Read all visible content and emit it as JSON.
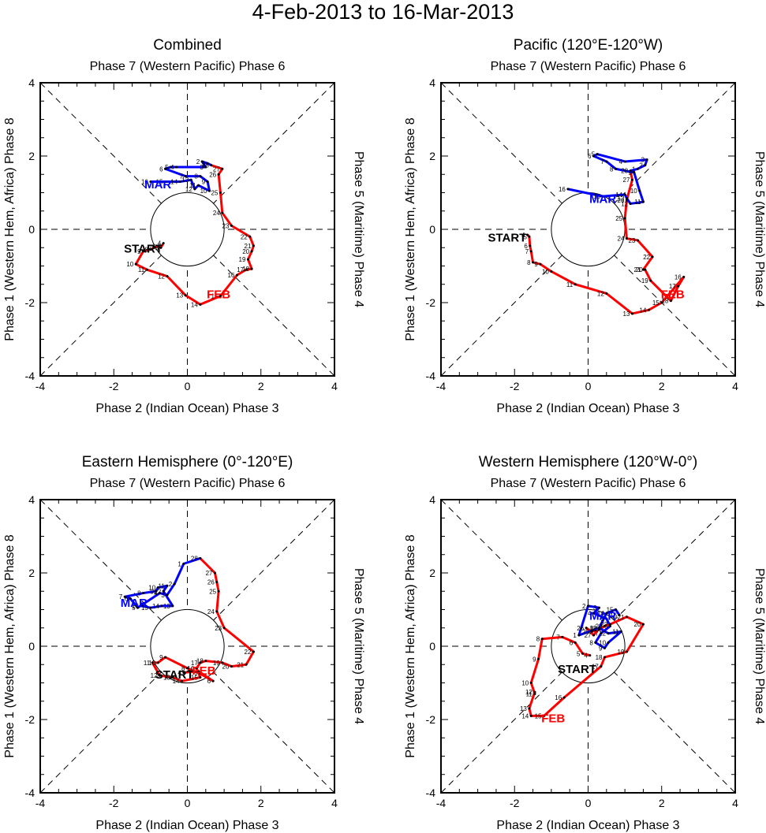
{
  "page": {
    "title": "4-Feb-2013 to 16-Mar-2013"
  },
  "axes": {
    "top_label": "Phase 7 (Western Pacific) Phase 6",
    "bottom_label": "Phase 2 (Indian Ocean) Phase 3",
    "left_label": "Phase 1 (Western Hem, Africa) Phase 8",
    "right_label": "Phase 5 (Maritime) Phase 4",
    "x_ticks": [
      "-4",
      "-2",
      "0",
      "2",
      "4"
    ],
    "y_ticks": [
      "4",
      "2",
      "0",
      "-2",
      "-4"
    ]
  },
  "colors": {
    "feb": "#ff0000",
    "mar": "#0000ff",
    "start": "#000000"
  },
  "labels": {
    "start": "START",
    "feb": "FEB",
    "mar": "MAR"
  },
  "chart_data": [
    {
      "type": "line",
      "title": "Combined",
      "xlim": [
        -4,
        4
      ],
      "ylim": [
        -4,
        4
      ],
      "start_label": [
        -1.2,
        -0.5
      ],
      "feb_label": [
        0.85,
        -1.75
      ],
      "mar_label": [
        -0.8,
        1.25
      ],
      "feb": [
        {
          "day": "4",
          "x": -0.65,
          "y": -0.38
        },
        {
          "day": "5",
          "x": -0.72,
          "y": -0.5
        },
        {
          "day": "6",
          "x": -0.8,
          "y": -0.46
        },
        {
          "day": "7",
          "x": -0.9,
          "y": -0.5
        },
        {
          "day": "8",
          "x": -1.0,
          "y": -0.55
        },
        {
          "day": "9",
          "x": -1.2,
          "y": -0.6
        },
        {
          "day": "10",
          "x": -1.4,
          "y": -0.95
        },
        {
          "day": "11",
          "x": -1.1,
          "y": -1.1
        },
        {
          "day": "12",
          "x": -0.55,
          "y": -1.28
        },
        {
          "day": "13",
          "x": -0.05,
          "y": -1.8
        },
        {
          "day": "14",
          "x": 0.35,
          "y": -2.05
        },
        {
          "day": "15",
          "x": 0.9,
          "y": -1.82
        },
        {
          "day": "16",
          "x": 1.35,
          "y": -1.25
        },
        {
          "day": "17",
          "x": 1.6,
          "y": -1.1
        },
        {
          "day": "18",
          "x": 1.75,
          "y": -1.08
        },
        {
          "day": "19",
          "x": 1.65,
          "y": -0.82
        },
        {
          "day": "20",
          "x": 1.75,
          "y": -0.6
        },
        {
          "day": "21",
          "x": 1.8,
          "y": -0.45
        },
        {
          "day": "22",
          "x": 1.7,
          "y": -0.2
        },
        {
          "day": "23",
          "x": 1.2,
          "y": 0.1
        },
        {
          "day": "24",
          "x": 0.95,
          "y": 0.45
        },
        {
          "day": "25",
          "x": 0.9,
          "y": 1.0
        },
        {
          "day": "26",
          "x": 0.85,
          "y": 1.5
        },
        {
          "day": "27",
          "x": 0.95,
          "y": 1.65
        },
        {
          "day": "28",
          "x": 0.65,
          "y": 1.75
        }
      ],
      "mar": [
        {
          "day": "1",
          "x": 0.55,
          "y": 1.8
        },
        {
          "day": "2",
          "x": 0.4,
          "y": 1.85
        },
        {
          "day": "3",
          "x": 0.5,
          "y": 1.7
        },
        {
          "day": "4",
          "x": -0.3,
          "y": 1.7
        },
        {
          "day": "5",
          "x": -0.45,
          "y": 1.7
        },
        {
          "day": "6",
          "x": -0.6,
          "y": 1.65
        },
        {
          "day": "7",
          "x": -0.05,
          "y": 1.45
        },
        {
          "day": "8",
          "x": 0.35,
          "y": 1.45
        },
        {
          "day": "9",
          "x": 0.55,
          "y": 1.3
        },
        {
          "day": "10",
          "x": 0.6,
          "y": 1.05
        },
        {
          "day": "11",
          "x": 0.3,
          "y": 1.2
        },
        {
          "day": "12",
          "x": 0.2,
          "y": 1.1
        },
        {
          "day": "13",
          "x": 0.1,
          "y": 1.35
        },
        {
          "day": "14",
          "x": -0.2,
          "y": 1.3
        },
        {
          "day": "15",
          "x": -0.6,
          "y": 1.3
        },
        {
          "day": "16",
          "x": -1.0,
          "y": 1.3
        }
      ]
    },
    {
      "type": "line",
      "title": "Pacific (120°E-120°W)",
      "xlim": [
        -4,
        4
      ],
      "ylim": [
        -4,
        4
      ],
      "start_label": [
        -2.2,
        -0.2
      ],
      "feb_label": [
        2.3,
        -1.75
      ],
      "mar_label": [
        0.4,
        0.85
      ],
      "feb": [
        {
          "day": "4",
          "x": -1.65,
          "y": -0.15
        },
        {
          "day": "5",
          "x": -1.6,
          "y": -0.2
        },
        {
          "day": "6",
          "x": -1.58,
          "y": -0.45
        },
        {
          "day": "7",
          "x": -1.55,
          "y": -0.6
        },
        {
          "day": "8",
          "x": -1.5,
          "y": -0.9
        },
        {
          "day": "9",
          "x": -1.3,
          "y": -0.95
        },
        {
          "day": "10",
          "x": -1.0,
          "y": -1.15
        },
        {
          "day": "11",
          "x": -0.35,
          "y": -1.5
        },
        {
          "day": "12",
          "x": 0.5,
          "y": -1.75
        },
        {
          "day": "13",
          "x": 1.2,
          "y": -2.3
        },
        {
          "day": "14",
          "x": 1.65,
          "y": -2.2
        },
        {
          "day": "15",
          "x": 2.0,
          "y": -2.0
        },
        {
          "day": "16",
          "x": 2.6,
          "y": -1.3
        },
        {
          "day": "17",
          "x": 2.45,
          "y": -1.55
        },
        {
          "day": "18",
          "x": 2.25,
          "y": -1.95
        },
        {
          "day": "19",
          "x": 1.7,
          "y": -1.4
        },
        {
          "day": "20",
          "x": 1.55,
          "y": -1.1
        },
        {
          "day": "21",
          "x": 1.5,
          "y": -1.1
        },
        {
          "day": "22",
          "x": 1.75,
          "y": -0.75
        },
        {
          "day": "23",
          "x": 1.35,
          "y": -0.3
        },
        {
          "day": "24",
          "x": 1.05,
          "y": -0.25
        },
        {
          "day": "25",
          "x": 1.0,
          "y": 0.3
        },
        {
          "day": "26",
          "x": 1.05,
          "y": 0.8
        },
        {
          "day": "27",
          "x": 1.2,
          "y": 1.35
        },
        {
          "day": "28",
          "x": 1.15,
          "y": 1.6
        }
      ],
      "mar": [
        {
          "day": "1",
          "x": 1.35,
          "y": 1.65
        },
        {
          "day": "2",
          "x": 1.55,
          "y": 1.75
        },
        {
          "day": "3",
          "x": 1.6,
          "y": 1.9
        },
        {
          "day": "4",
          "x": 1.0,
          "y": 1.85
        },
        {
          "day": "5",
          "x": 0.25,
          "y": 2.05
        },
        {
          "day": "6",
          "x": 0.15,
          "y": 2.0
        },
        {
          "day": "7",
          "x": 0.5,
          "y": 1.85
        },
        {
          "day": "8",
          "x": 0.75,
          "y": 1.65
        },
        {
          "day": "9",
          "x": 1.25,
          "y": 1.55
        },
        {
          "day": "10",
          "x": 1.4,
          "y": 1.05
        },
        {
          "day": "11",
          "x": 1.5,
          "y": 0.75
        },
        {
          "day": "12",
          "x": 1.15,
          "y": 0.7
        },
        {
          "day": "13",
          "x": 1.05,
          "y": 0.85
        },
        {
          "day": "14",
          "x": 1.0,
          "y": 0.95
        },
        {
          "day": "15",
          "x": 0.4,
          "y": 0.9
        },
        {
          "day": "16",
          "x": -0.55,
          "y": 1.1
        }
      ]
    },
    {
      "type": "line",
      "title": "Eastern Hemisphere (0°-120°E)",
      "xlim": [
        -4,
        4
      ],
      "ylim": [
        -4,
        4
      ],
      "start_label": [
        -0.35,
        -0.75
      ],
      "feb_label": [
        0.45,
        -0.65
      ],
      "mar_label": [
        -1.45,
        1.2
      ],
      "feb": [
        {
          "day": "4",
          "x": -0.1,
          "y": -0.72
        },
        {
          "day": "5",
          "x": 0.3,
          "y": -0.68
        },
        {
          "day": "6",
          "x": 0.7,
          "y": -0.95
        },
        {
          "day": "7",
          "x": 0.35,
          "y": -0.75
        },
        {
          "day": "8",
          "x": 0.0,
          "y": -0.6
        },
        {
          "day": "9",
          "x": -0.6,
          "y": -0.3
        },
        {
          "day": "10",
          "x": -0.8,
          "y": -0.45
        },
        {
          "day": "11",
          "x": -0.95,
          "y": -0.45
        },
        {
          "day": "12",
          "x": -0.75,
          "y": -0.8
        },
        {
          "day": "13",
          "x": -0.4,
          "y": -0.85
        },
        {
          "day": "14",
          "x": -0.15,
          "y": -0.95
        },
        {
          "day": "15",
          "x": 0.35,
          "y": -0.85
        },
        {
          "day": "16",
          "x": 0.25,
          "y": -0.6
        },
        {
          "day": "17",
          "x": 0.35,
          "y": -0.45
        },
        {
          "day": "18",
          "x": 0.5,
          "y": -0.4
        },
        {
          "day": "19",
          "x": 0.95,
          "y": -0.45
        },
        {
          "day": "20",
          "x": 1.2,
          "y": -0.55
        },
        {
          "day": "21",
          "x": 1.6,
          "y": -0.5
        },
        {
          "day": "22",
          "x": 1.8,
          "y": -0.15
        },
        {
          "day": "23",
          "x": 1.0,
          "y": 0.5
        },
        {
          "day": "24",
          "x": 0.8,
          "y": 0.95
        },
        {
          "day": "25",
          "x": 0.85,
          "y": 1.5
        },
        {
          "day": "26",
          "x": 0.8,
          "y": 1.75
        },
        {
          "day": "27",
          "x": 0.75,
          "y": 2.0
        },
        {
          "day": "28",
          "x": 0.35,
          "y": 2.4
        }
      ],
      "mar": [
        {
          "day": "1",
          "x": -0.1,
          "y": 2.25
        },
        {
          "day": "2",
          "x": -0.35,
          "y": 1.7
        },
        {
          "day": "3",
          "x": -0.55,
          "y": 1.4
        },
        {
          "day": "4",
          "x": -0.75,
          "y": 1.45
        },
        {
          "day": "5",
          "x": -1.35,
          "y": 1.05
        },
        {
          "day": "6",
          "x": -1.55,
          "y": 1.3
        },
        {
          "day": "7",
          "x": -1.7,
          "y": 1.35
        },
        {
          "day": "8",
          "x": -1.2,
          "y": 1.45
        },
        {
          "day": "9",
          "x": -0.85,
          "y": 1.5
        },
        {
          "day": "10",
          "x": -0.8,
          "y": 1.6
        },
        {
          "day": "11",
          "x": -0.55,
          "y": 1.65
        },
        {
          "day": "12",
          "x": -0.65,
          "y": 1.5
        },
        {
          "day": "13",
          "x": -0.4,
          "y": 1.1
        },
        {
          "day": "14",
          "x": -0.7,
          "y": 1.1
        },
        {
          "day": "15",
          "x": -1.0,
          "y": 1.05
        },
        {
          "day": "16",
          "x": -1.25,
          "y": 1.1
        }
      ]
    },
    {
      "type": "line",
      "title": "Western Hemisphere (120°W-0°)",
      "xlim": [
        -4,
        4
      ],
      "ylim": [
        -4,
        4
      ],
      "start_label": [
        -0.3,
        -0.6
      ],
      "feb_label": [
        -0.95,
        -1.95
      ],
      "mar_label": [
        0.4,
        0.85
      ],
      "feb": [
        {
          "day": "4",
          "x": 0.05,
          "y": -0.25
        },
        {
          "day": "5",
          "x": -0.15,
          "y": -0.2
        },
        {
          "day": "6",
          "x": -0.35,
          "y": 0.1
        },
        {
          "day": "7",
          "x": -0.7,
          "y": 0.25
        },
        {
          "day": "8",
          "x": -1.25,
          "y": 0.2
        },
        {
          "day": "9",
          "x": -1.35,
          "y": -0.35
        },
        {
          "day": "10",
          "x": -1.55,
          "y": -1.0
        },
        {
          "day": "11",
          "x": -1.45,
          "y": -1.3
        },
        {
          "day": "12",
          "x": -1.45,
          "y": -1.25
        },
        {
          "day": "13",
          "x": -1.6,
          "y": -1.7
        },
        {
          "day": "14",
          "x": -1.55,
          "y": -1.9
        },
        {
          "day": "15",
          "x": -1.2,
          "y": -1.9
        },
        {
          "day": "16",
          "x": -0.65,
          "y": -1.4
        },
        {
          "day": "17",
          "x": 0.35,
          "y": -0.55
        },
        {
          "day": "18",
          "x": 0.45,
          "y": -0.3
        },
        {
          "day": "19",
          "x": 1.05,
          "y": -0.15
        },
        {
          "day": "20",
          "x": 1.5,
          "y": 0.6
        },
        {
          "day": "21",
          "x": 1.05,
          "y": 0.8
        },
        {
          "day": "22",
          "x": 0.6,
          "y": 0.6
        },
        {
          "day": "23",
          "x": 0.45,
          "y": 0.55
        },
        {
          "day": "24",
          "x": 0.3,
          "y": 0.45
        },
        {
          "day": "25",
          "x": 0.1,
          "y": 0.4
        },
        {
          "day": "26",
          "x": -0.05,
          "y": 0.5
        },
        {
          "day": "27",
          "x": 0.15,
          "y": 0.3
        },
        {
          "day": "28",
          "x": 0.3,
          "y": 0.5
        }
      ],
      "mar": [
        {
          "day": "1",
          "x": -0.25,
          "y": 0.3
        },
        {
          "day": "2",
          "x": 0.0,
          "y": 1.1
        },
        {
          "day": "3",
          "x": 0.3,
          "y": 1.05
        },
        {
          "day": "4",
          "x": 0.15,
          "y": 0.9
        },
        {
          "day": "5",
          "x": 0.5,
          "y": 0.75
        },
        {
          "day": "6",
          "x": 0.6,
          "y": 0.55
        },
        {
          "day": "7",
          "x": 0.35,
          "y": 0.35
        },
        {
          "day": "8",
          "x": 0.2,
          "y": 0.1
        },
        {
          "day": "9",
          "x": 0.45,
          "y": -0.05
        },
        {
          "day": "10",
          "x": 0.55,
          "y": 0.1
        },
        {
          "day": "11",
          "x": 0.9,
          "y": 0.4
        },
        {
          "day": "12",
          "x": 0.55,
          "y": 0.35
        },
        {
          "day": "13",
          "x": 0.3,
          "y": 0.5
        },
        {
          "day": "14",
          "x": 0.5,
          "y": 0.9
        },
        {
          "day": "15",
          "x": 0.75,
          "y": 1.0
        },
        {
          "day": "16",
          "x": 0.85,
          "y": 0.85
        }
      ]
    }
  ]
}
